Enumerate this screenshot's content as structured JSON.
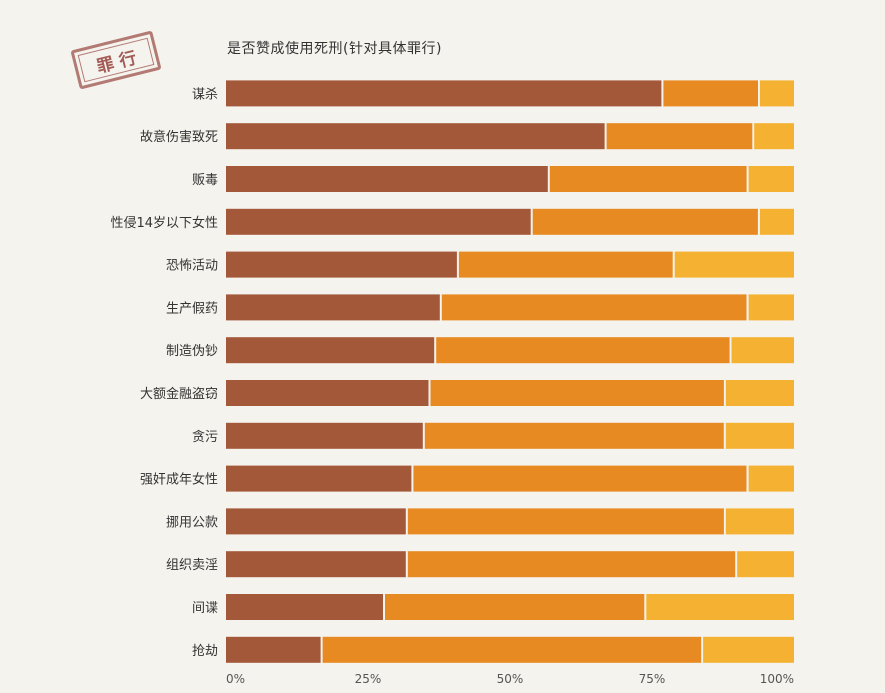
{
  "stamp": {
    "text": "罪行"
  },
  "chart_data": {
    "type": "bar",
    "orientation": "horizontal",
    "stacked": true,
    "title": "是否赞成使用死刑(针对具体罪行)",
    "categories": [
      "谋杀",
      "故意伤害致死",
      "贩毒",
      "性侵14岁以下女性",
      "恐怖活动",
      "生产假药",
      "制造伪钞",
      "大额金融盗窃",
      "贪污",
      "强奸成年女性",
      "挪用公款",
      "组织卖淫",
      "间谍",
      "抢劫"
    ],
    "series": [
      {
        "color": "#a4583a",
        "values": [
          77,
          67,
          57,
          54,
          41,
          38,
          37,
          36,
          35,
          33,
          32,
          32,
          28,
          17
        ]
      },
      {
        "color": "#e88a22",
        "values": [
          17,
          26,
          35,
          40,
          38,
          54,
          52,
          52,
          53,
          59,
          56,
          58,
          46,
          67
        ]
      },
      {
        "color": "#f5b131",
        "values": [
          6,
          7,
          8,
          6,
          21,
          8,
          11,
          12,
          12,
          8,
          12,
          10,
          26,
          16
        ]
      }
    ],
    "xlim": [
      0,
      100
    ],
    "x_ticks": [
      "0%",
      "25%",
      "50%",
      "75%",
      "100%"
    ],
    "grid": false,
    "legend": "none"
  }
}
